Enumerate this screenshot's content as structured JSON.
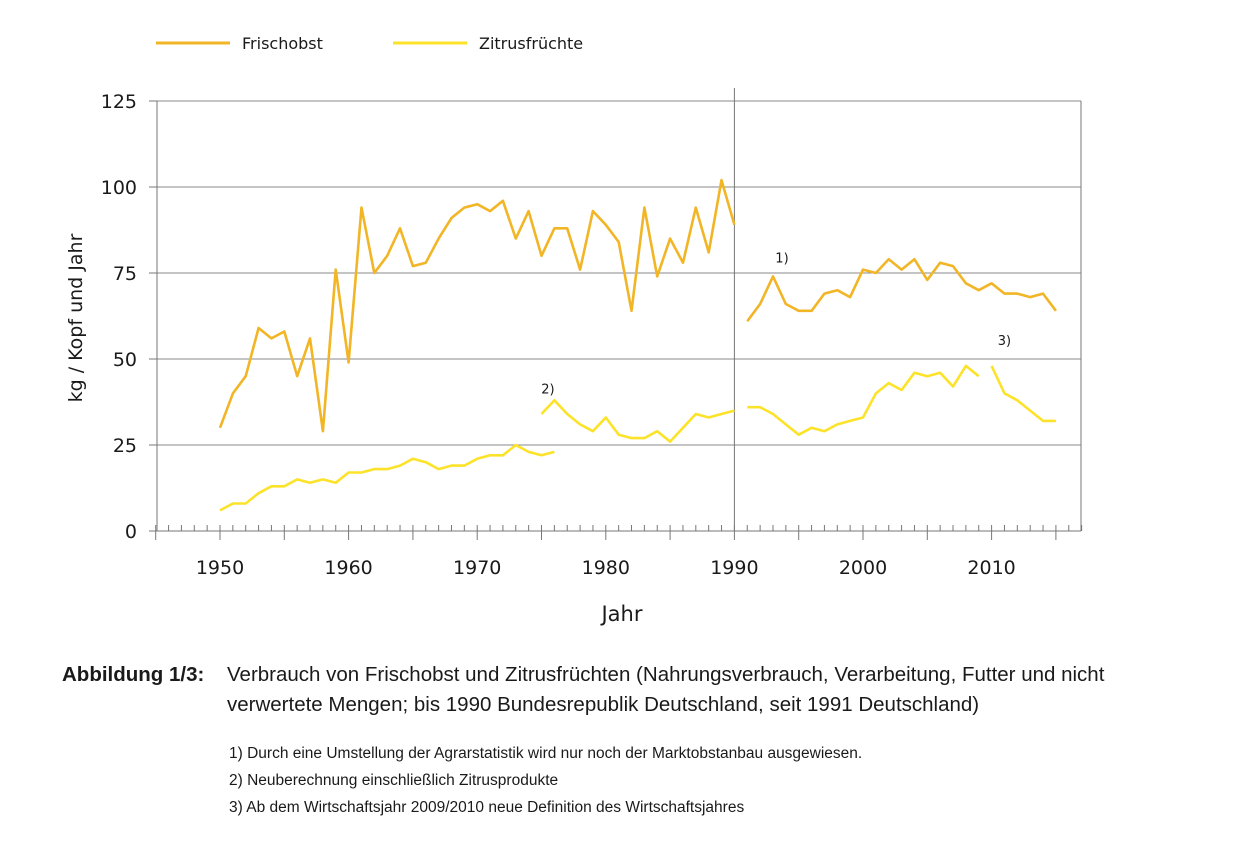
{
  "chart_data": {
    "type": "line",
    "title": "",
    "xlabel": "Jahr",
    "ylabel": "kg / Kopf und Jahr",
    "xlim": [
      1945,
      2017
    ],
    "ylim": [
      0,
      125
    ],
    "xticks": [
      1950,
      1960,
      1970,
      1980,
      1990,
      2000,
      2010
    ],
    "yticks": [
      0,
      25,
      50,
      75,
      100,
      125
    ],
    "grid": true,
    "legend_position": "top-left",
    "colors": {
      "frischobst": "#f2b526",
      "zitrus": "#fce32a",
      "grid": "#8a8a8a",
      "axis": "#777777"
    },
    "series": [
      {
        "name": "Frischobst",
        "color": "#f2b526",
        "segments": [
          [
            [
              1950,
              30
            ],
            [
              1951,
              40
            ],
            [
              1952,
              45
            ],
            [
              1953,
              59
            ],
            [
              1954,
              56
            ],
            [
              1955,
              58
            ],
            [
              1956,
              45
            ],
            [
              1957,
              56
            ],
            [
              1958,
              29
            ],
            [
              1959,
              76
            ],
            [
              1960,
              49
            ],
            [
              1961,
              94
            ],
            [
              1962,
              75
            ],
            [
              1963,
              80
            ],
            [
              1964,
              88
            ],
            [
              1965,
              77
            ],
            [
              1966,
              78
            ],
            [
              1967,
              85
            ],
            [
              1968,
              91
            ],
            [
              1969,
              94
            ],
            [
              1970,
              95
            ],
            [
              1971,
              93
            ],
            [
              1972,
              96
            ],
            [
              1973,
              85
            ],
            [
              1974,
              93
            ],
            [
              1975,
              80
            ],
            [
              1976,
              88
            ],
            [
              1977,
              88
            ],
            [
              1978,
              76
            ],
            [
              1979,
              93
            ],
            [
              1980,
              89
            ],
            [
              1981,
              84
            ],
            [
              1982,
              64
            ],
            [
              1983,
              94
            ],
            [
              1984,
              74
            ],
            [
              1985,
              85
            ],
            [
              1986,
              78
            ],
            [
              1987,
              94
            ],
            [
              1988,
              81
            ],
            [
              1989,
              102
            ],
            [
              1990,
              89
            ]
          ],
          [
            [
              1991,
              61
            ],
            [
              1992,
              66
            ],
            [
              1993,
              74
            ],
            [
              1994,
              66
            ],
            [
              1995,
              64
            ],
            [
              1996,
              64
            ],
            [
              1997,
              69
            ],
            [
              1998,
              70
            ],
            [
              1999,
              68
            ],
            [
              2000,
              76
            ],
            [
              2001,
              75
            ],
            [
              2002,
              79
            ],
            [
              2003,
              76
            ],
            [
              2004,
              79
            ],
            [
              2005,
              73
            ],
            [
              2006,
              78
            ],
            [
              2007,
              77
            ],
            [
              2008,
              72
            ],
            [
              2009,
              70
            ],
            [
              2010,
              72
            ],
            [
              2011,
              69
            ],
            [
              2012,
              69
            ],
            [
              2013,
              68
            ],
            [
              2014,
              69
            ],
            [
              2015,
              64
            ]
          ]
        ]
      },
      {
        "name": "Zitrusfrüchte",
        "color": "#fce32a",
        "segments": [
          [
            [
              1950,
              6
            ],
            [
              1951,
              8
            ],
            [
              1952,
              8
            ],
            [
              1953,
              11
            ],
            [
              1954,
              13
            ],
            [
              1955,
              13
            ],
            [
              1956,
              15
            ],
            [
              1957,
              14
            ],
            [
              1958,
              15
            ],
            [
              1959,
              14
            ],
            [
              1960,
              17
            ],
            [
              1961,
              17
            ],
            [
              1962,
              18
            ],
            [
              1963,
              18
            ],
            [
              1964,
              19
            ],
            [
              1965,
              21
            ],
            [
              1966,
              20
            ],
            [
              1967,
              18
            ],
            [
              1968,
              19
            ],
            [
              1969,
              19
            ],
            [
              1970,
              21
            ],
            [
              1971,
              22
            ],
            [
              1972,
              22
            ],
            [
              1973,
              25
            ],
            [
              1974,
              23
            ],
            [
              1975,
              22
            ],
            [
              1976,
              23
            ]
          ],
          [
            [
              1975,
              34
            ],
            [
              1976,
              38
            ],
            [
              1977,
              34
            ],
            [
              1978,
              31
            ],
            [
              1979,
              29
            ],
            [
              1980,
              33
            ],
            [
              1981,
              28
            ],
            [
              1982,
              27
            ],
            [
              1983,
              27
            ],
            [
              1984,
              29
            ],
            [
              1985,
              26
            ],
            [
              1986,
              30
            ],
            [
              1987,
              34
            ],
            [
              1988,
              33
            ],
            [
              1989,
              34
            ],
            [
              1990,
              35
            ]
          ],
          [
            [
              1991,
              36
            ],
            [
              1992,
              36
            ],
            [
              1993,
              34
            ],
            [
              1994,
              31
            ],
            [
              1995,
              28
            ],
            [
              1996,
              30
            ],
            [
              1997,
              29
            ],
            [
              1998,
              31
            ],
            [
              1999,
              32
            ],
            [
              2000,
              33
            ],
            [
              2001,
              40
            ],
            [
              2002,
              43
            ],
            [
              2003,
              41
            ],
            [
              2004,
              46
            ],
            [
              2005,
              45
            ],
            [
              2006,
              46
            ],
            [
              2007,
              42
            ],
            [
              2008,
              48
            ],
            [
              2009,
              45
            ]
          ],
          [
            [
              2010,
              48
            ],
            [
              2011,
              40
            ],
            [
              2012,
              38
            ],
            [
              2013,
              35
            ],
            [
              2014,
              32
            ],
            [
              2015,
              32
            ]
          ]
        ]
      }
    ],
    "annotations": [
      {
        "text": "1)",
        "x": 1993.7,
        "y": 78
      },
      {
        "text": "2)",
        "x": 1975.5,
        "y": 40
      },
      {
        "text": "3)",
        "x": 2011,
        "y": 54
      }
    ]
  },
  "caption": {
    "label": "Abbildung 1/3:",
    "text": "Verbrauch von Frischobst und Zitrusfrüchten (Nahrungsverbrauch, Verarbeitung, Futter und nicht verwertete Mengen; bis 1990 Bundesrepublik Deutschland, seit 1991 Deutschland)"
  },
  "footnotes": [
    "1) Durch eine Umstellung der Agrarstatistik wird nur noch der Marktobstanbau ausgewiesen.",
    "2) Neuberechnung einschließlich Zitrusprodukte",
    "3) Ab dem Wirtschaftsjahr 2009/2010 neue Definition des Wirtschaftsjahres"
  ]
}
